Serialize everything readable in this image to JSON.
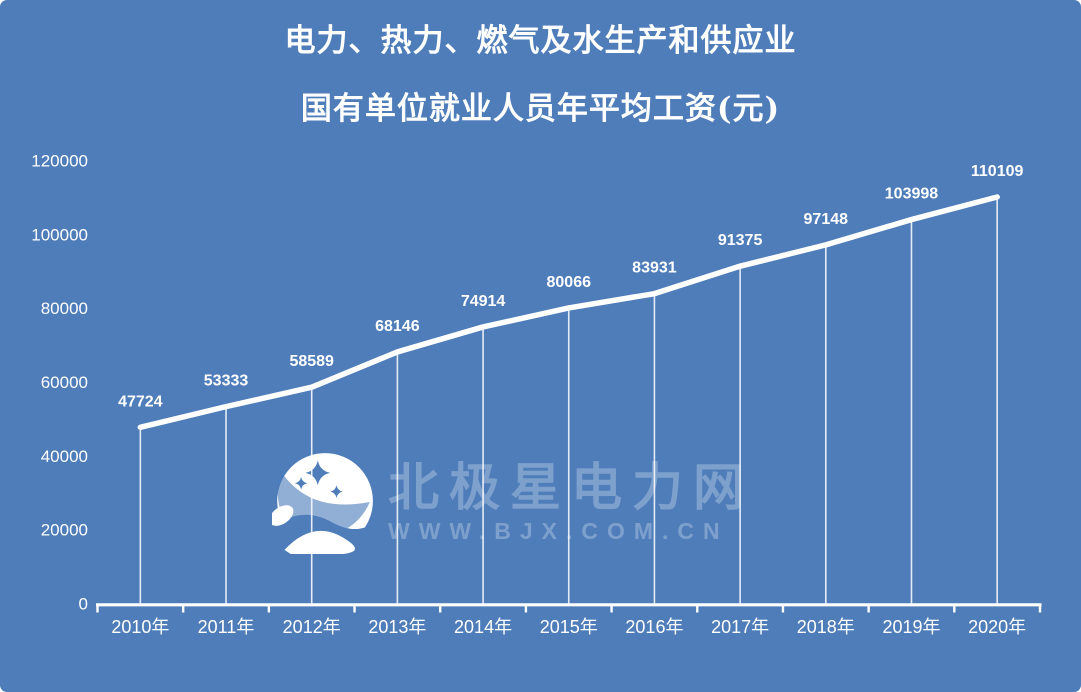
{
  "title": {
    "line1": "电力、热力、燃气及水生产和供应业",
    "line2": "国有单位就业人员年平均工资(元)"
  },
  "watermark": {
    "brand": "北极星电力网",
    "url": "WWW.BJX.COM.CN",
    "logo": "moon-and-stars-logo"
  },
  "colors": {
    "background": "#4e7dba",
    "foreground": "#ffffff",
    "drop_line": "rgba(255,255,255,0.85)"
  },
  "chart_data": {
    "type": "line",
    "title": "电力、热力、燃气及水生产和供应业 国有单位就业人员年平均工资(元)",
    "categories": [
      "2010年",
      "2011年",
      "2012年",
      "2013年",
      "2014年",
      "2015年",
      "2016年",
      "2017年",
      "2018年",
      "2019年",
      "2020年"
    ],
    "series": [
      {
        "name": "国有单位就业人员年平均工资",
        "values": [
          47724,
          53333,
          58589,
          68146,
          74914,
          80066,
          83931,
          91375,
          97148,
          103998,
          110109
        ]
      }
    ],
    "xlabel": "",
    "ylabel": "",
    "ylim": [
      0,
      120000
    ],
    "ytick_step": 20000,
    "ytick_labels": [
      "0",
      "20000",
      "40000",
      "60000",
      "80000",
      "100000",
      "120000"
    ],
    "grid": false,
    "legend_position": "none",
    "data_labels": true,
    "drop_lines": true,
    "line_color": "#ffffff"
  }
}
